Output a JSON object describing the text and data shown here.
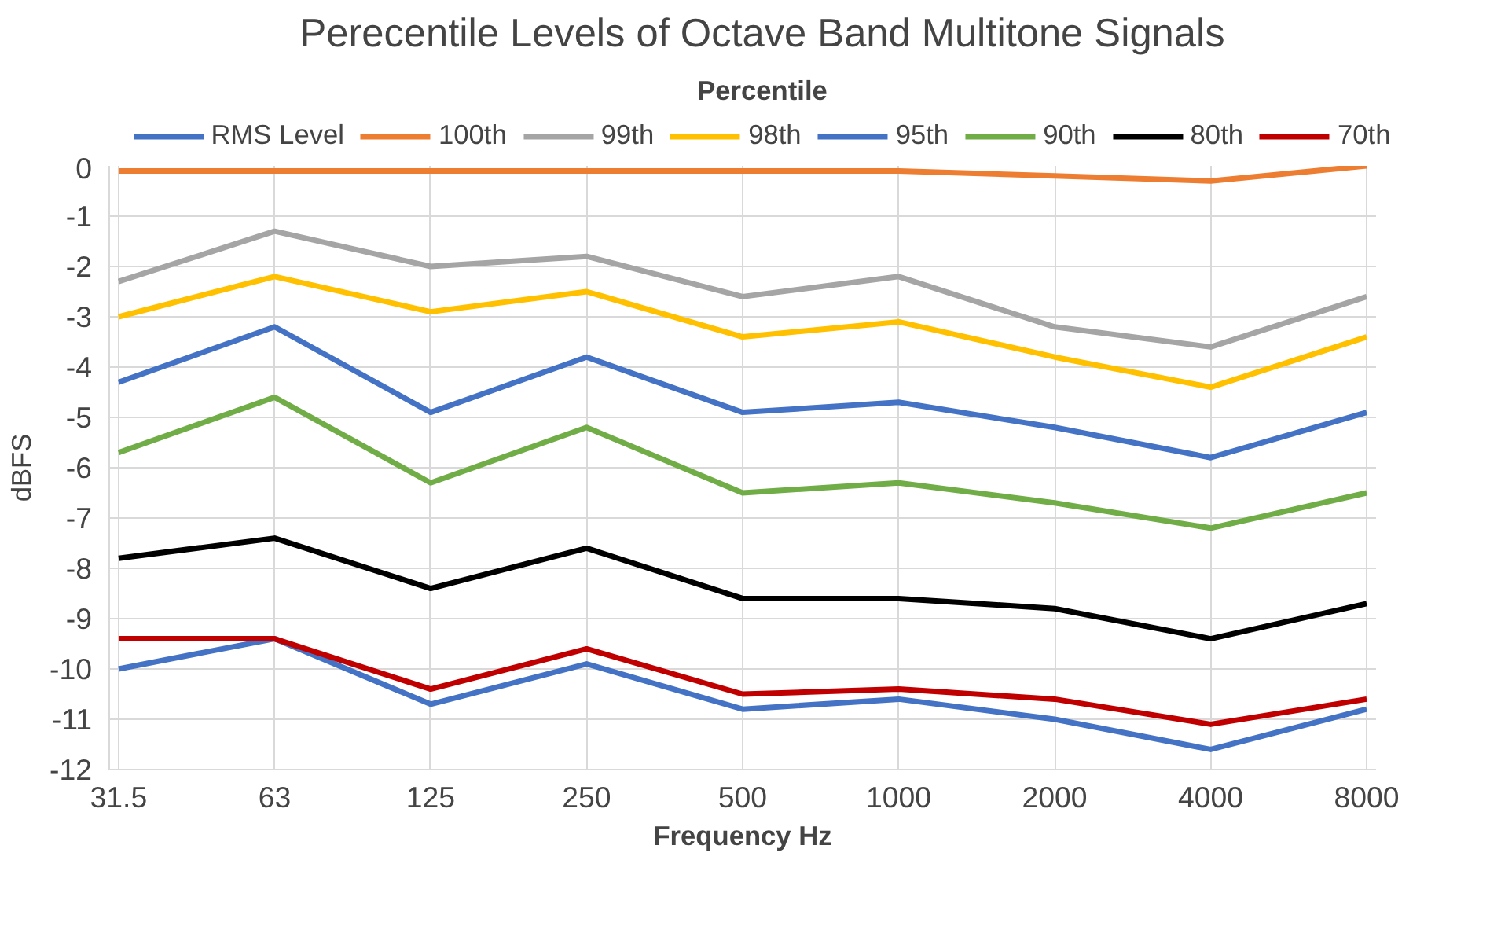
{
  "chart_data": {
    "type": "line",
    "title": "Perecentile Levels of Octave Band Multitone Signals",
    "xlabel": "Frequency Hz",
    "ylabel": "dBFS",
    "legend_title": "Percentile",
    "legend": "top",
    "categories": [
      "31.5",
      "63",
      "125",
      "250",
      "500",
      "1000",
      "2000",
      "4000",
      "8000"
    ],
    "ylim": [
      -12,
      0
    ],
    "yticks": [
      -12,
      -11,
      -10,
      -9,
      -8,
      -7,
      -6,
      -5,
      -4,
      -3,
      -2,
      -1,
      0
    ],
    "grid": true,
    "line_style": "solid",
    "series": [
      {
        "name": "RMS Level",
        "color": "#4472c4",
        "values": [
          -10.0,
          -9.4,
          -10.7,
          -9.9,
          -10.8,
          -10.6,
          -11.0,
          -11.6,
          -10.8
        ]
      },
      {
        "name": "100th",
        "color": "#ed7d31",
        "values": [
          -0.1,
          -0.1,
          -0.1,
          -0.1,
          -0.1,
          -0.1,
          -0.2,
          -0.3,
          0.0
        ]
      },
      {
        "name": "99th",
        "color": "#a5a5a5",
        "values": [
          -2.3,
          -1.3,
          -2.0,
          -1.8,
          -2.6,
          -2.2,
          -3.2,
          -3.6,
          -2.6
        ]
      },
      {
        "name": "98th",
        "color": "#ffc000",
        "values": [
          -3.0,
          -2.2,
          -2.9,
          -2.5,
          -3.4,
          -3.1,
          -3.8,
          -4.4,
          -3.4
        ]
      },
      {
        "name": "95th",
        "color": "#4472c4",
        "values": [
          -4.3,
          -3.2,
          -4.9,
          -3.8,
          -4.9,
          -4.7,
          -5.2,
          -5.8,
          -4.9
        ]
      },
      {
        "name": "90th",
        "color": "#70ad47",
        "values": [
          -5.7,
          -4.6,
          -6.3,
          -5.2,
          -6.5,
          -6.3,
          -6.7,
          -7.2,
          -6.5
        ]
      },
      {
        "name": "80th",
        "color": "#000000",
        "values": [
          -7.8,
          -7.4,
          -8.4,
          -7.6,
          -8.6,
          -8.6,
          -8.8,
          -9.4,
          -8.7
        ]
      },
      {
        "name": "70th",
        "color": "#c00000",
        "values": [
          -9.4,
          -9.4,
          -10.4,
          -9.6,
          -10.5,
          -10.4,
          -10.6,
          -11.1,
          -10.6
        ]
      }
    ]
  }
}
